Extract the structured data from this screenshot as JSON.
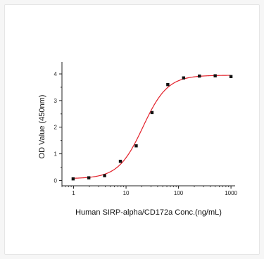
{
  "colors": {
    "curve": "#e3202a",
    "points": "#111111",
    "axis": "#222222"
  },
  "chart_data": {
    "type": "scatter",
    "title": "",
    "xlabel": "Human SIRP-alpha/CD172a Conc.(ng/mL)",
    "ylabel": "OD Value (450nm)",
    "x_scale": "log",
    "xlim": [
      0.6,
      1200
    ],
    "ylim": [
      -0.2,
      4.45
    ],
    "x_ticks": [
      1,
      10,
      100,
      1000
    ],
    "x_tick_labels": [
      "1",
      "10",
      "100",
      "1000"
    ],
    "y_ticks": [
      0,
      1,
      2,
      3,
      4
    ],
    "y_tick_labels": [
      "0",
      "1",
      "2",
      "3",
      "4"
    ],
    "grid": false,
    "legend": "none",
    "series": [
      {
        "type": "scatter",
        "x": [
          0.98,
          1.95,
          3.9,
          7.8,
          15.6,
          31.25,
          62.5,
          125,
          250,
          500,
          1000
        ],
        "y": [
          0.06,
          0.1,
          0.18,
          0.72,
          1.3,
          2.55,
          3.6,
          3.85,
          3.92,
          3.93,
          3.9
        ]
      },
      {
        "type": "line",
        "fit": "4PL",
        "params": {
          "bottom": 0.07,
          "top": 3.95,
          "ec50": 21,
          "hill": 1.85
        }
      }
    ]
  }
}
